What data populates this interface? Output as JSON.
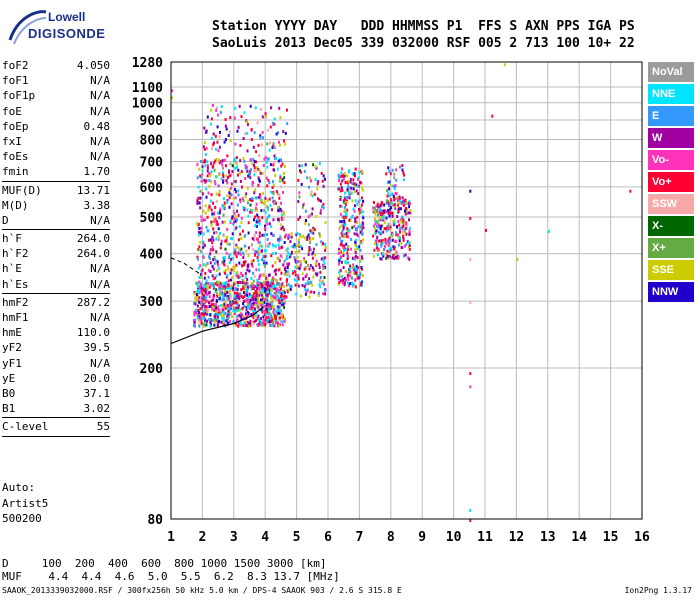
{
  "logo": {
    "line1": "Lowell",
    "line2": "DIGISONDE"
  },
  "header": {
    "labels": "Station YYYY DAY   DDD HHMMSS P1  FFS S AXN PPS IGA PS",
    "values": "SaoLuis 2013 Dec05 339 032000 RSF 005 2 713 100 10+ 22"
  },
  "params": [
    {
      "k": "foF2",
      "v": "4.050"
    },
    {
      "k": "foF1",
      "v": "N/A"
    },
    {
      "k": "foF1p",
      "v": "N/A"
    },
    {
      "k": "foE",
      "v": "N/A"
    },
    {
      "k": "foEp",
      "v": "0.48"
    },
    {
      "k": "fxI",
      "v": "N/A"
    },
    {
      "k": "foEs",
      "v": "N/A"
    },
    {
      "k": "fmin",
      "v": "1.70"
    },
    {
      "sep": true
    },
    {
      "k": "MUF(D)",
      "v": "13.71"
    },
    {
      "k": "M(D)",
      "v": "3.38"
    },
    {
      "k": "D",
      "v": "N/A"
    },
    {
      "sep": true
    },
    {
      "k": "h`F",
      "v": "264.0"
    },
    {
      "k": "h`F2",
      "v": "264.0"
    },
    {
      "k": "h`E",
      "v": "N/A"
    },
    {
      "k": "h`Es",
      "v": "N/A"
    },
    {
      "sep": true
    },
    {
      "k": "hmF2",
      "v": "287.2"
    },
    {
      "k": "hmF1",
      "v": "N/A"
    },
    {
      "k": "hmE",
      "v": "110.0"
    },
    {
      "k": "yF2",
      "v": "39.5"
    },
    {
      "k": "yF1",
      "v": "N/A"
    },
    {
      "k": "yE",
      "v": "20.0"
    },
    {
      "k": "B0",
      "v": "37.1"
    },
    {
      "k": "B1",
      "v": "3.02"
    },
    {
      "sep": true
    },
    {
      "k": "C-level",
      "v": "55"
    },
    {
      "sep": true
    }
  ],
  "auto": {
    "l1": "Auto:",
    "l2": "Artist5",
    "l3": "500200"
  },
  "legend": [
    {
      "name": "NoVal",
      "color": "#9b9b9b"
    },
    {
      "name": "NNE",
      "color": "#00e5ff"
    },
    {
      "name": "E",
      "color": "#3399ff"
    },
    {
      "name": "W",
      "color": "#a0009f"
    },
    {
      "name": "Vo-",
      "color": "#ff33bb"
    },
    {
      "name": "Vo+",
      "color": "#ff0033"
    },
    {
      "name": "SSW",
      "color": "#f5a9a9"
    },
    {
      "name": "X-",
      "color": "#006600"
    },
    {
      "name": "X+",
      "color": "#66aa44"
    },
    {
      "name": "SSE",
      "color": "#cccc00"
    },
    {
      "name": "NNW",
      "color": "#2200cc"
    }
  ],
  "muf_table": {
    "d_row": "D     100  200  400  600  800 1000 1500 3000 [km]",
    "muf_row": "MUF    4.4  4.4  4.6  5.0  5.5  6.2  8.3 13.7 [MHz]"
  },
  "footer": {
    "left": "SAAOK_2013339032000.RSF / 300fx256h 50 kHz 5.0 km / DPS-4 SAAOK 903 / 2.6 S 315.8 E",
    "right": "Ion2Png 1.3.17"
  },
  "chart_data": {
    "type": "scatter",
    "xlim": [
      1,
      16
    ],
    "ylim": [
      80,
      1280
    ],
    "x_ticks": [
      1,
      2,
      3,
      4,
      5,
      6,
      7,
      8,
      9,
      10,
      11,
      12,
      13,
      14,
      15,
      16
    ],
    "y_ticks": [
      80,
      200,
      300,
      400,
      500,
      600,
      700,
      800,
      900,
      1000,
      1100,
      1280
    ],
    "y_scale": "log",
    "grid": true,
    "clusters": [
      {
        "x0": 1.7,
        "x1": 4.6,
        "y0": 260,
        "y1": 340,
        "density": 900
      },
      {
        "x0": 1.8,
        "x1": 4.6,
        "y0": 330,
        "y1": 720,
        "density": 700
      },
      {
        "x0": 2.0,
        "x1": 4.7,
        "y0": 700,
        "y1": 1000,
        "density": 120
      },
      {
        "x0": 4.6,
        "x1": 5.9,
        "y0": 310,
        "y1": 460,
        "density": 200
      },
      {
        "x0": 5.0,
        "x1": 5.9,
        "y0": 460,
        "y1": 700,
        "density": 60
      },
      {
        "x0": 6.3,
        "x1": 7.1,
        "y0": 330,
        "y1": 680,
        "density": 320
      },
      {
        "x0": 7.4,
        "x1": 8.6,
        "y0": 390,
        "y1": 560,
        "density": 300
      },
      {
        "x0": 7.8,
        "x1": 8.4,
        "y0": 560,
        "y1": 690,
        "density": 40
      }
    ],
    "profile_curve": [
      [
        1,
        232
      ],
      [
        2,
        250
      ],
      [
        3,
        262
      ],
      [
        3.6,
        275
      ],
      [
        3.95,
        290
      ]
    ],
    "trace_line": [
      [
        1,
        390
      ],
      [
        1.4,
        378
      ],
      [
        1.9,
        355
      ]
    ],
    "isolated_points": [
      [
        10.5,
        80
      ],
      [
        10.5,
        85
      ],
      [
        10.5,
        180
      ],
      [
        10.5,
        195
      ],
      [
        10.5,
        300
      ],
      [
        10.5,
        390
      ],
      [
        10.5,
        500
      ],
      [
        10.5,
        590
      ],
      [
        11.0,
        465
      ],
      [
        12.0,
        390
      ],
      [
        13.0,
        462
      ],
      [
        15.6,
        590
      ],
      [
        11.2,
        930
      ],
      [
        11.6,
        1270
      ],
      [
        1.0,
        1085
      ],
      [
        1.0,
        1040
      ]
    ]
  }
}
